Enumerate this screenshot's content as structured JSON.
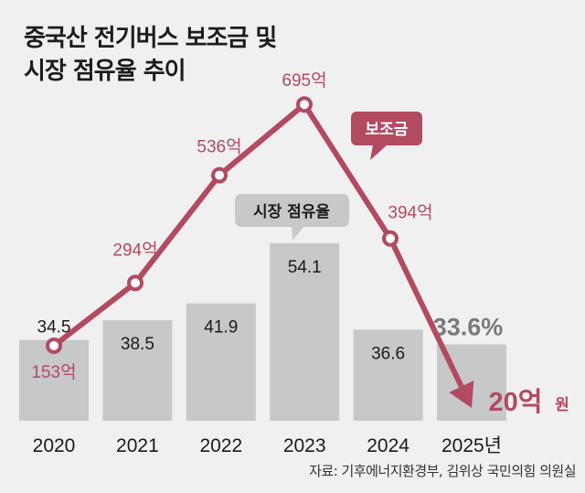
{
  "title_line1": "중국산 전기버스 보조금 및",
  "title_line2": "시장 점유율 추이",
  "source": "자료: 기후에너지환경부, 김위상 국민의힘 의원실",
  "colors": {
    "background": "#f0f0f0",
    "bar": "#c7c8ca",
    "subsidy_line": "#b24a61",
    "market_share_callout": "#c7c8ca",
    "highlight_share": "#7a7a7a"
  },
  "chart_data": {
    "type": "bar",
    "title": "중국산 전기버스 보조금 및 시장 점유율 추이",
    "categories": [
      "2020",
      "2021",
      "2022",
      "2023",
      "2024",
      "2025년"
    ],
    "series": [
      {
        "name": "시장 점유율",
        "type": "bar",
        "unit": "%",
        "values": [
          34.5,
          38.5,
          41.9,
          54.1,
          36.6,
          33.6
        ],
        "labels": [
          "34.5",
          "38.5",
          "41.9",
          "54.1",
          "36.6",
          "33.6%"
        ]
      },
      {
        "name": "보조금",
        "type": "line",
        "unit": "억 원",
        "values": [
          153,
          294,
          536,
          695,
          394,
          20
        ],
        "labels": [
          "153억",
          "294억",
          "536억",
          "695억",
          "394억",
          "20억"
        ],
        "final_unit_label": "원"
      }
    ],
    "callouts": {
      "market_share": "시장 점유율",
      "subsidy": "보조금"
    },
    "xlabel": "",
    "ylabel": "",
    "grid": false,
    "legend": "callouts"
  }
}
